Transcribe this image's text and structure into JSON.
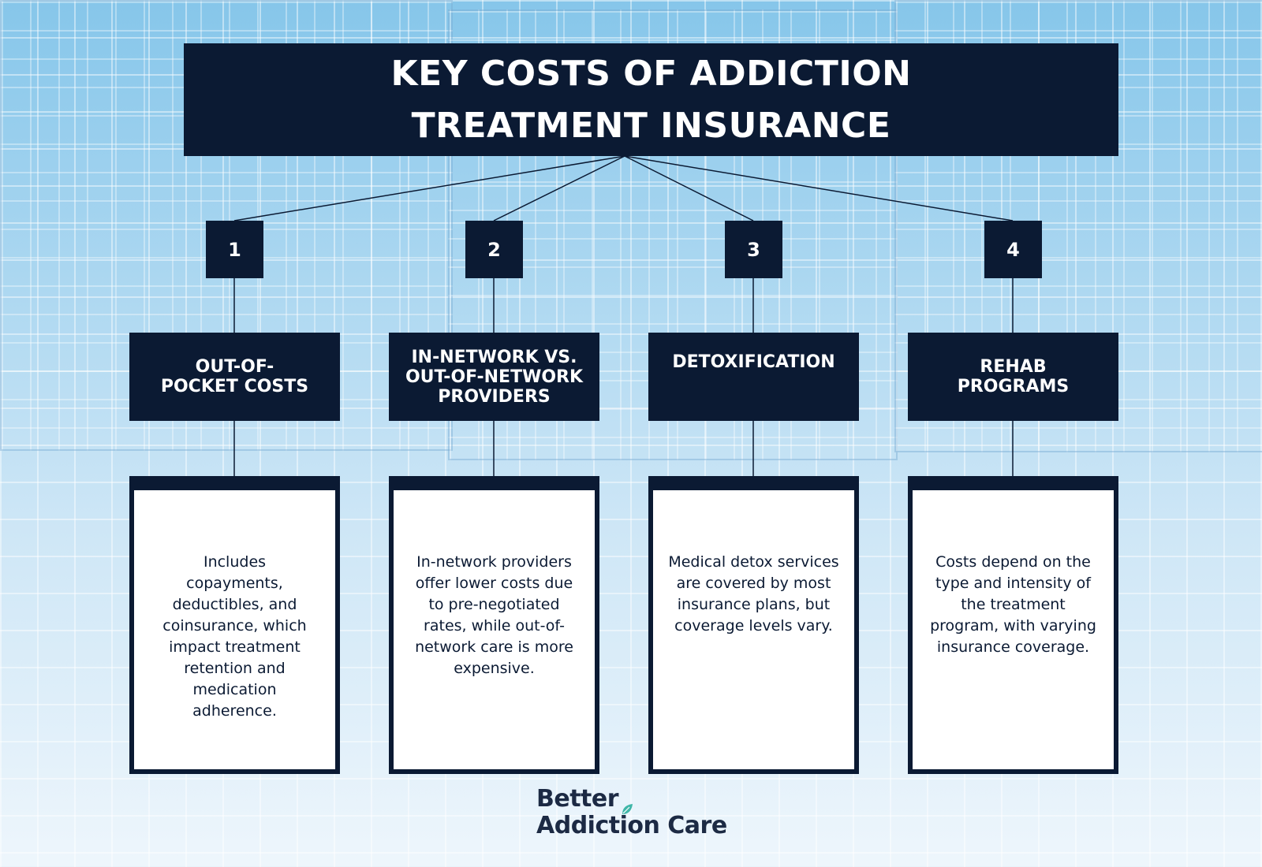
{
  "title": "KEY COSTS OF ADDICTION\nTREATMENT INSURANCE",
  "items": [
    {
      "number": "1",
      "heading": "OUT-OF-\nPOCKET COSTS",
      "description": "Includes\ncopayments,\ndeductibles, and\ncoinsurance, which\nimpact treatment\nretention and\nmedication\nadherence."
    },
    {
      "number": "2",
      "heading": "IN-NETWORK VS.\nOUT-OF-NETWORK\nPROVIDERS",
      "description": "In-network providers\noffer lower costs due\nto pre-negotiated\nrates, while out-of-\nnetwork care is more\nexpensive."
    },
    {
      "number": "3",
      "heading": "DETOXIFICATION",
      "description": "Medical detox services\nare covered by most\ninsurance plans, but\ncoverage levels vary."
    },
    {
      "number": "4",
      "heading": "REHAB\nPROGRAMS",
      "description": "Costs depend on the\ntype and intensity of\nthe treatment\nprogram, with varying\ninsurance coverage."
    }
  ],
  "brand": {
    "line1": "Better",
    "line2": "Addiction Care",
    "leaf_icon": "leaf-icon"
  },
  "colors": {
    "navy": "#0b1a33",
    "background_top": "#86c6ea",
    "background_bottom": "#eef6fc",
    "leaf": "#3fb6a8"
  }
}
